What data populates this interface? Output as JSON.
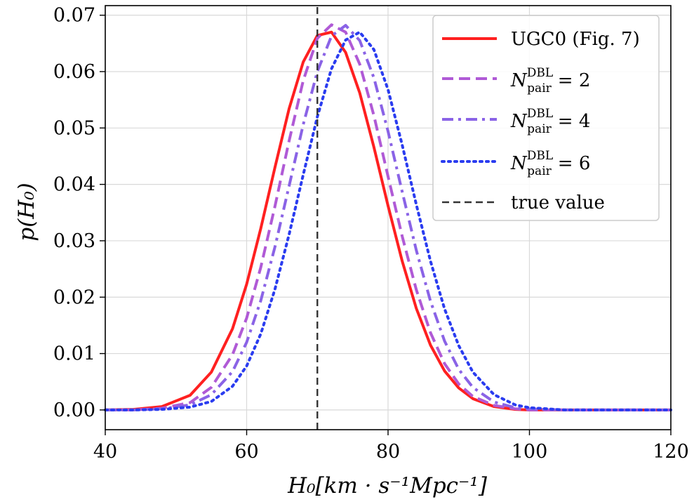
{
  "chart_data": {
    "type": "line",
    "title": "",
    "xlabel": "H₀[km · s⁻¹Mpc⁻¹]",
    "ylabel": "p(H₀)",
    "xlim": [
      40,
      120
    ],
    "ylim": [
      -0.0035,
      0.0717
    ],
    "xticks": [
      "40",
      "60",
      "80",
      "100",
      "120"
    ],
    "yticks": [
      "0.00",
      "0.01",
      "0.02",
      "0.03",
      "0.04",
      "0.05",
      "0.06",
      "0.07"
    ],
    "grid": true,
    "legend_position": "top-right",
    "series": [
      {
        "name": "UGC0 (Fig. 7)",
        "color": "#ff2020",
        "style": "solid",
        "x": [
          40,
          44,
          48,
          52,
          55,
          58,
          60,
          62,
          64,
          66,
          68,
          70,
          72,
          74,
          76,
          78,
          80,
          82,
          84,
          86,
          88,
          90,
          92,
          95,
          98,
          100,
          105,
          110,
          120
        ],
        "y": [
          0.0,
          0.0001,
          0.0006,
          0.0026,
          0.0067,
          0.0144,
          0.0223,
          0.0322,
          0.043,
          0.0534,
          0.0617,
          0.0664,
          0.067,
          0.0634,
          0.0562,
          0.0466,
          0.0362,
          0.0264,
          0.018,
          0.0115,
          0.0069,
          0.0039,
          0.002,
          0.0006,
          0.0001,
          0.0,
          0.0,
          0.0,
          0.0
        ]
      },
      {
        "name": "N_pair^DBL = 2",
        "color": "#b05ad6",
        "style": "dashed",
        "x": [
          40,
          44,
          48,
          52,
          55,
          58,
          60,
          62,
          64,
          66,
          68,
          70,
          72,
          74,
          76,
          78,
          80,
          82,
          84,
          86,
          88,
          90,
          92,
          95,
          98,
          100,
          105,
          110,
          120
        ],
        "y": [
          0.0,
          0.0,
          0.0003,
          0.0013,
          0.004,
          0.0098,
          0.0163,
          0.0253,
          0.0361,
          0.0477,
          0.0584,
          0.0659,
          0.0683,
          0.067,
          0.0613,
          0.0522,
          0.0414,
          0.0308,
          0.0213,
          0.0137,
          0.0082,
          0.0046,
          0.0024,
          0.0008,
          0.0002,
          0.0,
          0.0,
          0.0,
          0.0
        ]
      },
      {
        "name": "N_pair^DBL = 4",
        "color": "#8a63e6",
        "style": "dashdot",
        "x": [
          40,
          44,
          48,
          52,
          55,
          58,
          60,
          62,
          64,
          66,
          68,
          70,
          72,
          74,
          76,
          78,
          80,
          82,
          84,
          86,
          88,
          90,
          92,
          95,
          98,
          100,
          105,
          110,
          120
        ],
        "y": [
          0.0,
          0.0,
          0.0002,
          0.0009,
          0.0027,
          0.0068,
          0.012,
          0.0194,
          0.0289,
          0.0397,
          0.0506,
          0.06,
          0.0663,
          0.0682,
          0.0655,
          0.0589,
          0.0494,
          0.0387,
          0.0283,
          0.0193,
          0.0122,
          0.0072,
          0.004,
          0.0014,
          0.0004,
          0.0002,
          0.0,
          0.0,
          0.0
        ]
      },
      {
        "name": "N_pair^DBL = 6",
        "color": "#2a3cf0",
        "style": "dotted",
        "x": [
          40,
          44,
          48,
          52,
          55,
          58,
          60,
          62,
          64,
          66,
          68,
          70,
          72,
          74,
          76,
          78,
          80,
          82,
          84,
          86,
          88,
          90,
          92,
          95,
          98,
          100,
          105,
          110,
          120
        ],
        "y": [
          0.0,
          0.0,
          0.0001,
          0.0005,
          0.0015,
          0.0042,
          0.0078,
          0.0135,
          0.0214,
          0.0311,
          0.0417,
          0.052,
          0.0605,
          0.0656,
          0.067,
          0.0639,
          0.0568,
          0.047,
          0.0364,
          0.0264,
          0.0179,
          0.0114,
          0.0067,
          0.0027,
          0.0009,
          0.0004,
          0.0,
          0.0,
          0.0
        ]
      },
      {
        "name": "true value",
        "color": "#333333",
        "style": "dashed-vertical",
        "x": [
          70,
          70
        ],
        "y": [
          -0.0035,
          0.0717
        ]
      }
    ]
  }
}
